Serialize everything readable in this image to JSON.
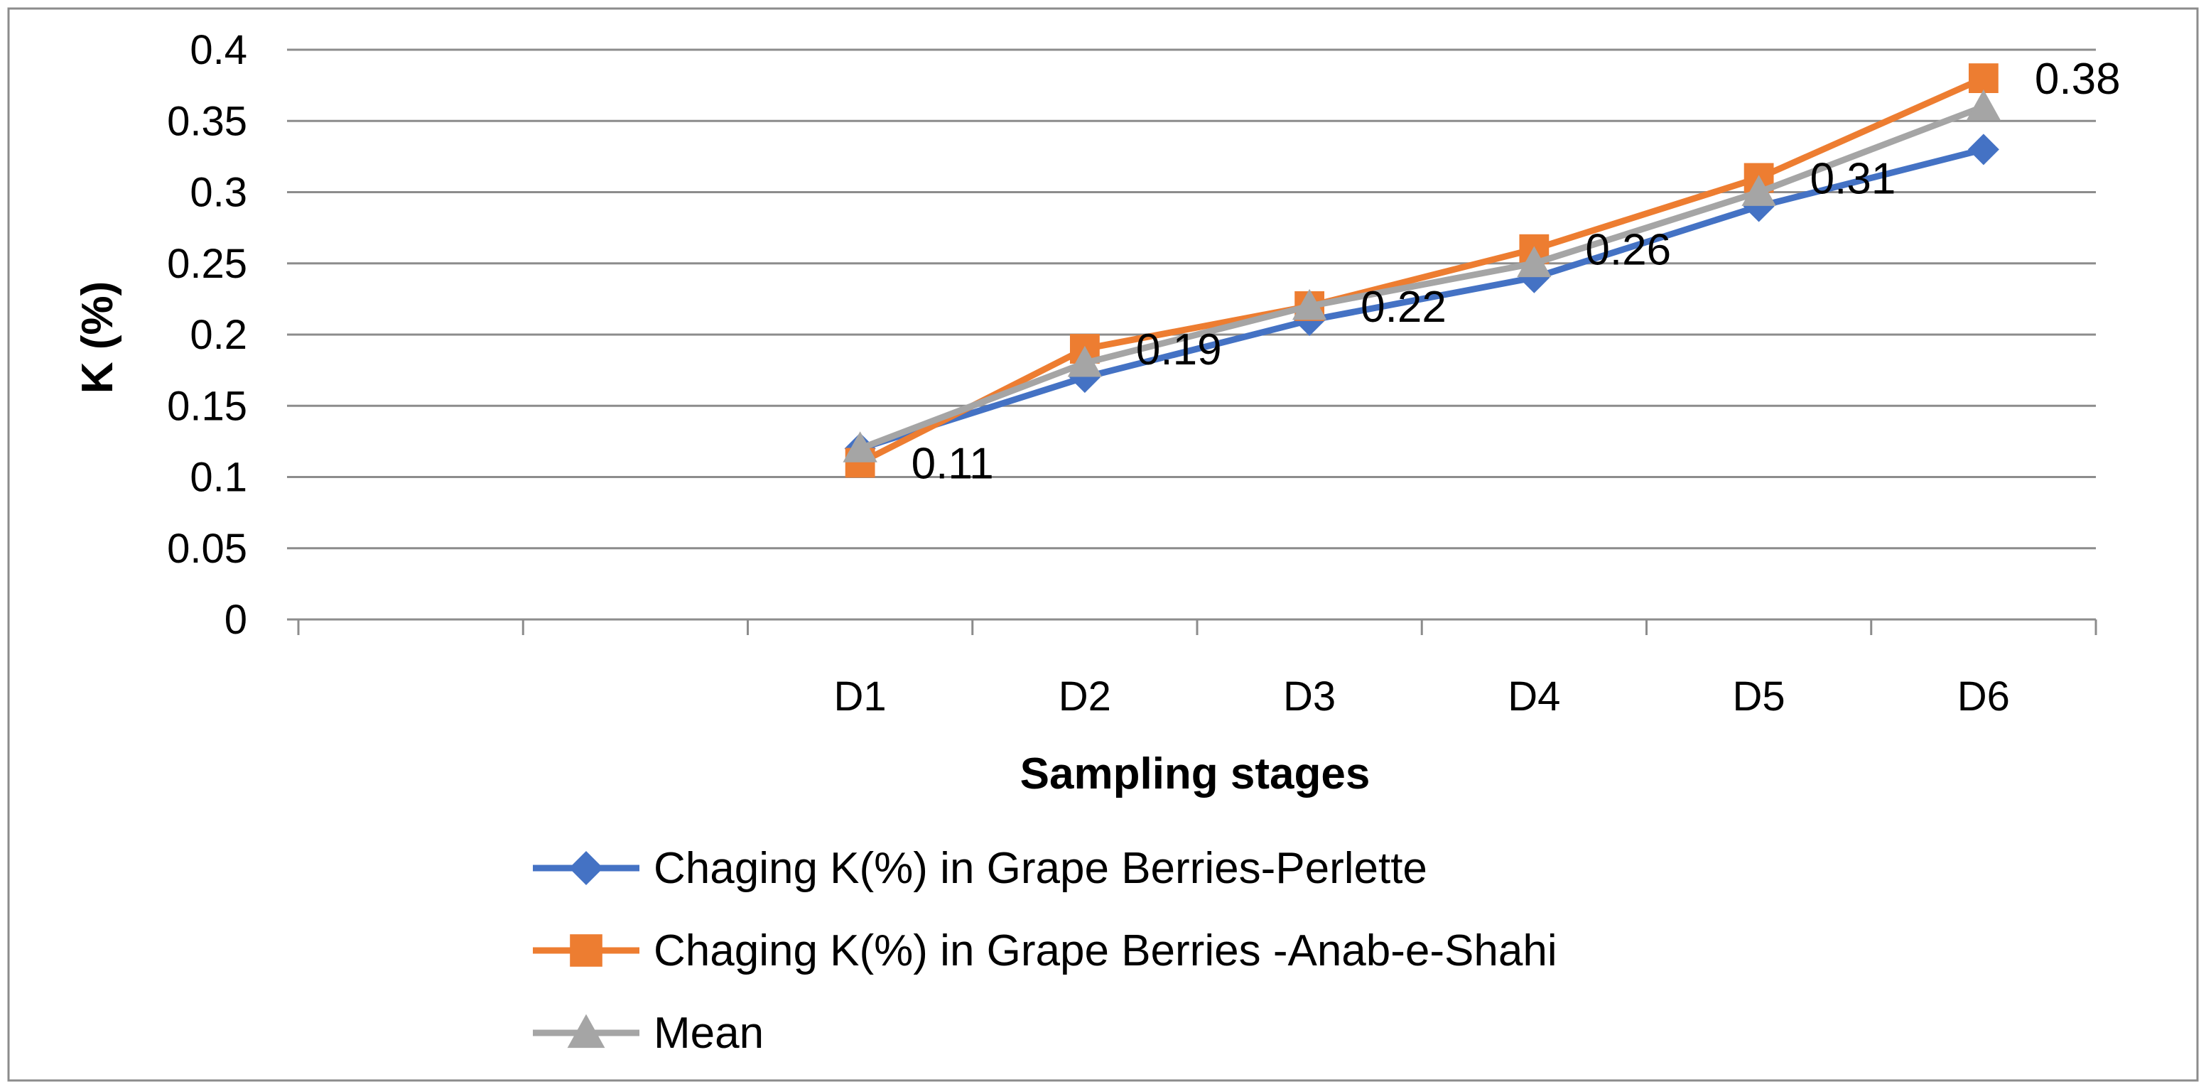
{
  "chart_data": {
    "type": "line",
    "title": "",
    "xlabel": "Sampling stages",
    "ylabel": "K (%)",
    "categories": [
      "D1",
      "D2",
      "D3",
      "D4",
      "D5",
      "D6"
    ],
    "category_slots": [
      "",
      "",
      "D1",
      "D2",
      "D3",
      "D4",
      "D5",
      "D6"
    ],
    "ylim": [
      0,
      0.4
    ],
    "yticks": [
      0,
      0.05,
      0.1,
      0.15,
      0.2,
      0.25,
      0.3,
      0.35,
      0.4
    ],
    "ytick_labels": [
      "0",
      "0.05",
      "0.1",
      "0.15",
      "0.2",
      "0.25",
      "0.3",
      "0.35",
      "0.4"
    ],
    "grid": true,
    "legend_position": "bottom",
    "series": [
      {
        "name": "Chaging K(%) in Grape Berries-Perlette",
        "values": [
          0.12,
          0.17,
          0.21,
          0.24,
          0.29,
          0.33
        ],
        "color": "#4472C4",
        "marker": "diamond"
      },
      {
        "name": "Chaging K(%) in Grape Berries -Anab-e-Shahi",
        "values": [
          0.11,
          0.19,
          0.22,
          0.26,
          0.31,
          0.38
        ],
        "color": "#ED7D31",
        "marker": "square"
      },
      {
        "name": "Mean",
        "values": [
          0.12,
          0.18,
          0.22,
          0.25,
          0.3,
          0.36
        ],
        "color": "#A5A5A5",
        "marker": "triangle"
      }
    ],
    "data_labels": {
      "series_index": 1,
      "labels": [
        "0.11",
        "0.19",
        "0.22",
        "0.26",
        "0.31",
        "0.38"
      ]
    }
  }
}
